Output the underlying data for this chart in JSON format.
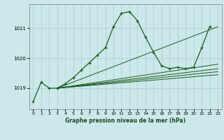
{
  "title": "Graphe pression niveau de la mer (hPa)",
  "bg_color": "#cce8ea",
  "grid_color": "#aacccc",
  "line_color": "#1a5c1a",
  "xlim": [
    -0.5,
    23.5
  ],
  "ylim": [
    1018.3,
    1021.8
  ],
  "yticks": [
    1019,
    1020,
    1021
  ],
  "xticks": [
    0,
    1,
    2,
    3,
    4,
    5,
    6,
    7,
    8,
    9,
    10,
    11,
    12,
    13,
    14,
    15,
    16,
    17,
    18,
    19,
    20,
    21,
    22,
    23
  ],
  "series": [
    {
      "x": [
        0,
        1,
        2,
        3,
        4,
        5,
        6,
        7,
        8,
        9,
        10,
        11,
        12,
        13,
        14,
        15,
        16,
        17,
        18,
        19,
        20,
        21,
        22
      ],
      "y": [
        1018.55,
        1019.2,
        1019.0,
        1019.0,
        1019.15,
        1019.35,
        1019.6,
        1019.85,
        1020.1,
        1020.35,
        1021.05,
        1021.5,
        1021.55,
        1021.25,
        1020.7,
        1020.2,
        1019.75,
        1019.65,
        1019.7,
        1019.65,
        1019.7,
        1020.35,
        1021.05
      ],
      "marker": true
    },
    {
      "x": [
        3,
        23
      ],
      "y": [
        1019.0,
        1019.8
      ],
      "marker": false
    },
    {
      "x": [
        3,
        23
      ],
      "y": [
        1019.0,
        1019.65
      ],
      "marker": false
    },
    {
      "x": [
        3,
        23
      ],
      "y": [
        1019.0,
        1019.55
      ],
      "marker": false
    },
    {
      "x": [
        3,
        23
      ],
      "y": [
        1019.0,
        1019.45
      ],
      "marker": false
    },
    {
      "x": [
        3,
        23
      ],
      "y": [
        1019.0,
        1021.05
      ],
      "marker": false
    }
  ]
}
